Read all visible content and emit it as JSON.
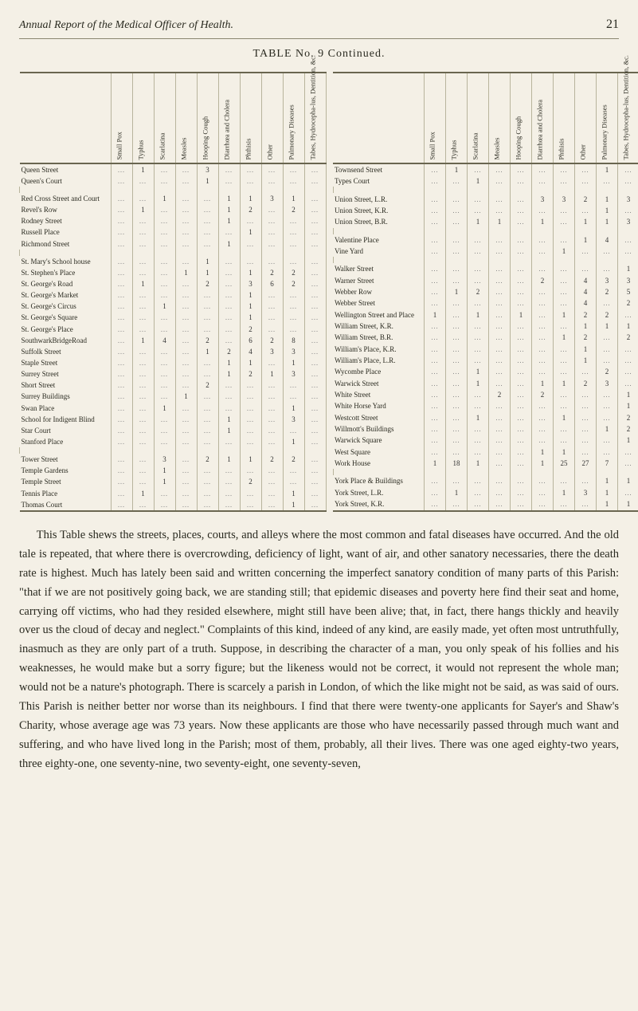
{
  "header": {
    "title": "Annual Report of the Medical Officer of Health.",
    "page_number": "21"
  },
  "table_title": "TABLE No. 9 Continued.",
  "columns": [
    "Small Pox",
    "Typhus",
    "Scarlatina",
    "Measles",
    "Hooping Cough",
    "Diarrhœa and Cholera",
    "Phthisis",
    "Other",
    "Pulmonary Diseases",
    "Tabes, Hydrocepha-lus, Dentition, &c."
  ],
  "left_groups": [
    [
      {
        "name": "Queen Street",
        "v": [
          "",
          "1",
          "",
          "",
          "3",
          "",
          "",
          "",
          "",
          ""
        ]
      },
      {
        "name": "Queen's Court",
        "v": [
          "",
          "",
          "",
          "",
          "1",
          "",
          "",
          "",
          "",
          ""
        ]
      }
    ],
    [
      {
        "name": "Red Cross Street and Court",
        "v": [
          "",
          "",
          "1",
          "",
          "",
          "1",
          "1",
          "3",
          "1",
          ""
        ]
      },
      {
        "name": "Revel's Row",
        "v": [
          "",
          "1",
          "",
          "",
          "",
          "1",
          "2",
          "",
          "2",
          ""
        ]
      },
      {
        "name": "Rodney Street",
        "v": [
          "",
          "",
          "",
          "",
          "",
          "1",
          "",
          "",
          "",
          ""
        ]
      },
      {
        "name": "Russell Place",
        "v": [
          "",
          "",
          "",
          "",
          "",
          "",
          "1",
          "",
          "",
          ""
        ]
      },
      {
        "name": "Richmond Street",
        "v": [
          "",
          "",
          "",
          "",
          "",
          "1",
          "",
          "",
          "",
          ""
        ]
      }
    ],
    [
      {
        "name": "St. Mary's School house",
        "v": [
          "",
          "",
          "",
          "",
          "1",
          "",
          "",
          "",
          "",
          ""
        ]
      },
      {
        "name": "St. Stephen's Place",
        "v": [
          "",
          "",
          "",
          "1",
          "1",
          "",
          "1",
          "2",
          "2",
          ""
        ]
      },
      {
        "name": "St. George's Road",
        "v": [
          "",
          "1",
          "",
          "",
          "2",
          "",
          "3",
          "6",
          "2",
          ""
        ]
      },
      {
        "name": "St. George's Market",
        "v": [
          "",
          "",
          "",
          "",
          "",
          "",
          "1",
          "",
          "",
          ""
        ]
      },
      {
        "name": "St. George's Circus",
        "v": [
          "",
          "",
          "1",
          "",
          "",
          "",
          "1",
          "",
          "",
          ""
        ]
      },
      {
        "name": "St. George's Square",
        "v": [
          "",
          "",
          "",
          "",
          "",
          "",
          "1",
          "",
          "",
          ""
        ]
      },
      {
        "name": "St. George's Place",
        "v": [
          "",
          "",
          "",
          "",
          "",
          "",
          "2",
          "",
          "",
          ""
        ]
      },
      {
        "name": "SouthwarkBridgeRoad",
        "v": [
          "",
          "1",
          "4",
          "",
          "2",
          "",
          "6",
          "2",
          "8",
          ""
        ]
      },
      {
        "name": "Suffolk Street",
        "v": [
          "",
          "",
          "",
          "",
          "1",
          "2",
          "4",
          "3",
          "3",
          ""
        ]
      },
      {
        "name": "Staple Street",
        "v": [
          "",
          "",
          "",
          "",
          "",
          "1",
          "1",
          "",
          "1",
          ""
        ]
      },
      {
        "name": "Surrey Street",
        "v": [
          "",
          "",
          "",
          "",
          "",
          "1",
          "2",
          "1",
          "3",
          ""
        ]
      },
      {
        "name": "Short Street",
        "v": [
          "",
          "",
          "",
          "",
          "2",
          "",
          "",
          "",
          "",
          ""
        ]
      },
      {
        "name": "Surrey Buildings",
        "v": [
          "",
          "",
          "",
          "1",
          "",
          "",
          "",
          "",
          "",
          ""
        ]
      },
      {
        "name": "Swan Place",
        "v": [
          "",
          "",
          "1",
          "",
          "",
          "",
          "",
          "",
          "1",
          ""
        ]
      },
      {
        "name": "School for Indigent Blind",
        "v": [
          "",
          "",
          "",
          "",
          "",
          "1",
          "",
          "",
          "3",
          ""
        ]
      },
      {
        "name": "Star Court",
        "v": [
          "",
          "",
          "",
          "",
          "",
          "1",
          "",
          "",
          "",
          ""
        ]
      },
      {
        "name": "Stanford Place",
        "v": [
          "",
          "",
          "",
          "",
          "",
          "",
          "",
          "",
          "1",
          ""
        ]
      }
    ],
    [
      {
        "name": "Tower Street",
        "v": [
          "",
          "",
          "3",
          "",
          "2",
          "1",
          "1",
          "2",
          "2",
          ""
        ]
      },
      {
        "name": "Temple Gardens",
        "v": [
          "",
          "",
          "1",
          "",
          "",
          "",
          "",
          "",
          "",
          ""
        ]
      },
      {
        "name": "Temple Street",
        "v": [
          "",
          "",
          "1",
          "",
          "",
          "",
          "2",
          "",
          "",
          ""
        ]
      },
      {
        "name": "Tennis Place",
        "v": [
          "",
          "1",
          "",
          "",
          "",
          "",
          "",
          "",
          "1",
          ""
        ]
      },
      {
        "name": "Thomas Court",
        "v": [
          "",
          "",
          "",
          "",
          "",
          "",
          "",
          "",
          "1",
          ""
        ]
      }
    ]
  ],
  "right_groups": [
    [
      {
        "name": "Townsend Street",
        "v": [
          "",
          "1",
          "",
          "",
          "",
          "",
          "",
          "",
          "1",
          ""
        ]
      },
      {
        "name": "Types Court",
        "v": [
          "",
          "",
          "1",
          "",
          "",
          "",
          "",
          "",
          "",
          ""
        ]
      }
    ],
    [
      {
        "name": "Union Street, L.R.",
        "v": [
          "",
          "",
          "",
          "",
          "",
          "3",
          "3",
          "2",
          "1",
          "3"
        ]
      },
      {
        "name": "Union Street, K.R.",
        "v": [
          "",
          "",
          "",
          "",
          "",
          "",
          "",
          "",
          "1",
          ""
        ]
      },
      {
        "name": "Union Street, B.R.",
        "v": [
          "",
          "",
          "1",
          "1",
          "",
          "1",
          "",
          "1",
          "1",
          "3"
        ]
      }
    ],
    [
      {
        "name": "Valentine Place",
        "v": [
          "",
          "",
          "",
          "",
          "",
          "",
          "",
          "1",
          "4",
          ""
        ]
      },
      {
        "name": "Vine Yard",
        "v": [
          "",
          "",
          "",
          "",
          "",
          "",
          "1",
          "",
          "",
          ""
        ]
      }
    ],
    [
      {
        "name": "Walker Street",
        "v": [
          "",
          "",
          "",
          "",
          "",
          "",
          "",
          "",
          "",
          "1"
        ]
      },
      {
        "name": "Warner Street",
        "v": [
          "",
          "",
          "",
          "",
          "",
          "2",
          "",
          "4",
          "3",
          "3"
        ]
      },
      {
        "name": "Webber Row",
        "v": [
          "",
          "1",
          "2",
          "",
          "",
          "",
          "",
          "4",
          "2",
          "5"
        ]
      },
      {
        "name": "Webber Street",
        "v": [
          "",
          "",
          "",
          "",
          "",
          "",
          "",
          "4",
          "",
          "2"
        ]
      },
      {
        "name": "Wellington Street and Place",
        "v": [
          "1",
          "",
          "1",
          "",
          "1",
          "",
          "1",
          "2",
          "2",
          ""
        ]
      },
      {
        "name": "William Street, K.R.",
        "v": [
          "",
          "",
          "",
          "",
          "",
          "",
          "",
          "1",
          "1",
          "1"
        ]
      },
      {
        "name": "William Street, B.R.",
        "v": [
          "",
          "",
          "",
          "",
          "",
          "",
          "1",
          "2",
          "",
          "2"
        ]
      },
      {
        "name": "William's Place, K.R.",
        "v": [
          "",
          "",
          "",
          "",
          "",
          "",
          "",
          "1",
          "",
          ""
        ]
      },
      {
        "name": "William's Place, L.R.",
        "v": [
          "",
          "",
          "",
          "",
          "",
          "",
          "",
          "1",
          "",
          ""
        ]
      },
      {
        "name": "Wycombe Place",
        "v": [
          "",
          "",
          "1",
          "",
          "",
          "",
          "",
          "",
          "2",
          ""
        ]
      },
      {
        "name": "Warwick Street",
        "v": [
          "",
          "",
          "1",
          "",
          "",
          "1",
          "1",
          "2",
          "3",
          ""
        ]
      },
      {
        "name": "White Street",
        "v": [
          "",
          "",
          "",
          "2",
          "",
          "2",
          "",
          "",
          "",
          "1"
        ]
      },
      {
        "name": "White Horse Yard",
        "v": [
          "",
          "",
          "",
          "",
          "",
          "",
          "",
          "",
          "",
          "1"
        ]
      },
      {
        "name": "Westcott Street",
        "v": [
          "",
          "",
          "1",
          "",
          "",
          "",
          "1",
          "",
          "",
          "2"
        ]
      },
      {
        "name": "Willmott's Buildings",
        "v": [
          "",
          "",
          "",
          "",
          "",
          "",
          "",
          "",
          "1",
          "2"
        ]
      },
      {
        "name": "Warwick Square",
        "v": [
          "",
          "",
          "",
          "",
          "",
          "",
          "",
          "",
          "",
          "1"
        ]
      },
      {
        "name": "West Square",
        "v": [
          "",
          "",
          "",
          "",
          "",
          "1",
          "1",
          "",
          "",
          ""
        ]
      },
      {
        "name": "Work House",
        "v": [
          "1",
          "18",
          "1",
          "",
          "",
          "1",
          "25",
          "27",
          "7",
          ""
        ]
      }
    ],
    [
      {
        "name": "York Place & Buildings",
        "v": [
          "",
          "",
          "",
          "",
          "",
          "",
          "",
          "",
          "1",
          "1"
        ]
      },
      {
        "name": "York Street, L.R.",
        "v": [
          "",
          "1",
          "",
          "",
          "",
          "",
          "1",
          "3",
          "1",
          ""
        ]
      },
      {
        "name": "York Street, K.R.",
        "v": [
          "",
          "",
          "",
          "",
          "",
          "",
          "",
          "",
          "1",
          "1"
        ]
      }
    ]
  ],
  "body_text": "This Table shews the streets, places, courts, and alleys where the most common and fatal diseases have occurred. And the old tale is repeated, that where there is overcrowding, deficiency of light, want of air, and other sanatory necessaries, there the death rate is highest. Much has lately been said and written concerning the imperfect sanatory condition of many parts of this Parish: \"that if we are not positively going back, we are standing still; that epidemic diseases and poverty here find their seat and home, carrying off victims, who had they resided elsewhere, might still have been alive; that, in fact, there hangs thickly and heavily over us the cloud of decay and neglect.\" Complaints of this kind, indeed of any kind, are easily made, yet often most untruthfully, inasmuch as they are only part of a truth. Suppose, in describing the character of a man, you only speak of his follies and his weaknesses, he would make but a sorry figure; but the likeness would not be correct, it would not represent the whole man; would not be a nature's photograph. There is scarcely a parish in London, of which the like might not be said, as was said of ours. This Parish is neither better nor worse than its neighbours. I find that there were twenty-one applicants for Sayer's and Shaw's Charity, whose average age was 73 years. Now these applicants are those who have necessarily passed through much want and suffering, and who have lived long in the Parish; most of them, probably, all their lives. There was one aged eighty-two years, three eighty-one, one seventy-nine, two seventy-eight, one seventy-seven,"
}
